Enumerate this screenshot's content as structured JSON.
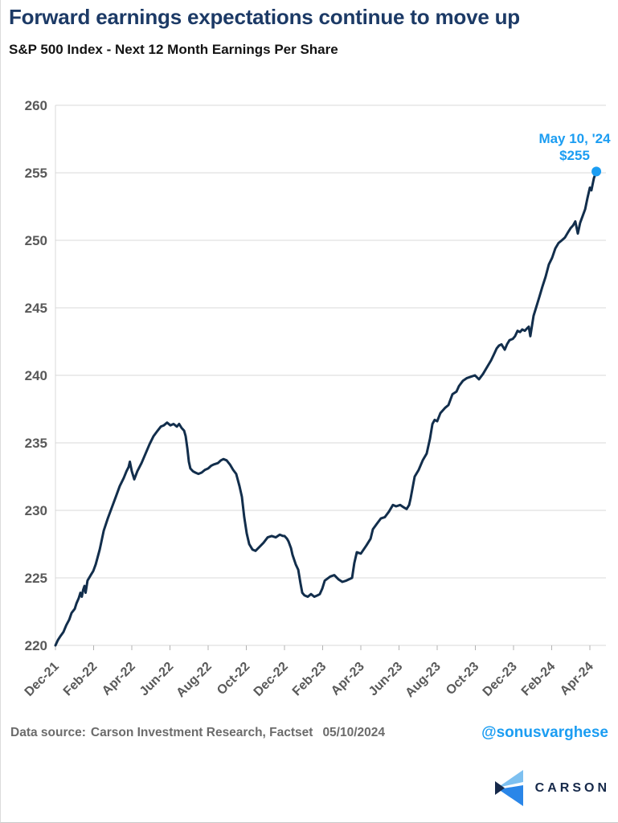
{
  "header": {
    "title": "Forward earnings expectations continue to move up",
    "subtitle": "S&P 500 Index - Next 12 Month Earnings Per Share"
  },
  "annotation": {
    "date": "May 10, '24",
    "value": "$255"
  },
  "footer": {
    "source_label": "Data source:",
    "source_text": "Carson Investment Research, Factset",
    "date": "05/10/2024",
    "handle": "@sonusvarghese"
  },
  "logo": {
    "text": "CARSON"
  },
  "colors": {
    "title": "#1c3a66",
    "line": "#122e4c",
    "accent": "#1b9df2",
    "grid": "#d9d9d9",
    "tick": "#b3b3b3",
    "axis_text": "#595959",
    "logo_light": "#7dc0f0",
    "logo_blue": "#2a86e8",
    "logo_navy": "#16294a"
  },
  "chart_data": {
    "type": "line",
    "title": "S&P 500 Index - Next 12 Month Earnings Per Share",
    "xlabel": "",
    "ylabel": "",
    "ylim": [
      220,
      260
    ],
    "y_ticks": [
      220,
      225,
      230,
      235,
      240,
      245,
      250,
      255,
      260
    ],
    "grid": "horizontal",
    "legend": "none",
    "x_labels": [
      "Dec-21",
      "Feb-22",
      "Apr-22",
      "Jun-22",
      "Aug-22",
      "Oct-22",
      "Dec-22",
      "Feb-23",
      "Apr-23",
      "Jun-23",
      "Aug-23",
      "Oct-23",
      "Dec-23",
      "Feb-24",
      "Apr-24"
    ],
    "x_tick_interval_months": 2,
    "x_unit": "months since Dec-2021",
    "endpoint": {
      "t": 28.34,
      "value": 255.1,
      "label_date": "May 10, '24",
      "label_value": "$255"
    },
    "series": [
      {
        "name": "S&P 500 NTM EPS",
        "points": [
          [
            0.0,
            220.0
          ],
          [
            0.13,
            220.4
          ],
          [
            0.27,
            220.7
          ],
          [
            0.42,
            221.0
          ],
          [
            0.57,
            221.5
          ],
          [
            0.72,
            221.9
          ],
          [
            0.84,
            222.4
          ],
          [
            1.01,
            222.7
          ],
          [
            1.1,
            223.1
          ],
          [
            1.22,
            223.5
          ],
          [
            1.31,
            223.9
          ],
          [
            1.38,
            223.6
          ],
          [
            1.45,
            224.1
          ],
          [
            1.52,
            224.4
          ],
          [
            1.58,
            223.9
          ],
          [
            1.68,
            224.8
          ],
          [
            1.85,
            225.2
          ],
          [
            1.98,
            225.5
          ],
          [
            2.11,
            226.0
          ],
          [
            2.32,
            227.1
          ],
          [
            2.53,
            228.5
          ],
          [
            2.74,
            229.4
          ],
          [
            2.95,
            230.2
          ],
          [
            3.16,
            231.0
          ],
          [
            3.37,
            231.8
          ],
          [
            3.58,
            232.4
          ],
          [
            3.72,
            232.9
          ],
          [
            3.83,
            233.2
          ],
          [
            3.9,
            233.6
          ],
          [
            4.0,
            232.9
          ],
          [
            4.13,
            232.3
          ],
          [
            4.29,
            232.9
          ],
          [
            4.51,
            233.5
          ],
          [
            4.72,
            234.2
          ],
          [
            4.93,
            234.9
          ],
          [
            5.14,
            235.5
          ],
          [
            5.35,
            235.9
          ],
          [
            5.52,
            236.2
          ],
          [
            5.68,
            236.3
          ],
          [
            5.85,
            236.5
          ],
          [
            6.02,
            236.3
          ],
          [
            6.19,
            236.4
          ],
          [
            6.36,
            236.2
          ],
          [
            6.48,
            236.4
          ],
          [
            6.61,
            236.1
          ],
          [
            6.74,
            235.9
          ],
          [
            6.82,
            235.5
          ],
          [
            6.91,
            234.6
          ],
          [
            6.99,
            233.6
          ],
          [
            7.07,
            233.1
          ],
          [
            7.2,
            232.9
          ],
          [
            7.33,
            232.8
          ],
          [
            7.49,
            232.7
          ],
          [
            7.66,
            232.8
          ],
          [
            7.83,
            233.0
          ],
          [
            8.0,
            233.1
          ],
          [
            8.15,
            233.3
          ],
          [
            8.29,
            233.4
          ],
          [
            8.51,
            233.5
          ],
          [
            8.67,
            233.7
          ],
          [
            8.8,
            233.8
          ],
          [
            8.97,
            233.7
          ],
          [
            9.14,
            233.4
          ],
          [
            9.31,
            233.0
          ],
          [
            9.47,
            232.7
          ],
          [
            9.64,
            231.8
          ],
          [
            9.77,
            231.0
          ],
          [
            9.89,
            229.5
          ],
          [
            10.02,
            228.3
          ],
          [
            10.15,
            227.5
          ],
          [
            10.32,
            227.1
          ],
          [
            10.48,
            227.0
          ],
          [
            10.69,
            227.3
          ],
          [
            10.9,
            227.6
          ],
          [
            11.12,
            228.0
          ],
          [
            11.33,
            228.1
          ],
          [
            11.54,
            228.0
          ],
          [
            11.75,
            228.2
          ],
          [
            11.92,
            228.1
          ],
          [
            12.0,
            228.1
          ],
          [
            12.13,
            227.9
          ],
          [
            12.21,
            227.7
          ],
          [
            12.34,
            227.2
          ],
          [
            12.42,
            226.7
          ],
          [
            12.59,
            226.0
          ],
          [
            12.72,
            225.6
          ],
          [
            12.84,
            224.6
          ],
          [
            12.93,
            223.9
          ],
          [
            13.05,
            223.7
          ],
          [
            13.22,
            223.6
          ],
          [
            13.39,
            223.8
          ],
          [
            13.56,
            223.6
          ],
          [
            13.73,
            223.7
          ],
          [
            13.85,
            223.8
          ],
          [
            13.98,
            224.2
          ],
          [
            14.11,
            224.8
          ],
          [
            14.4,
            225.1
          ],
          [
            14.61,
            225.2
          ],
          [
            14.82,
            224.9
          ],
          [
            15.03,
            224.7
          ],
          [
            15.24,
            224.8
          ],
          [
            15.54,
            225.0
          ],
          [
            15.66,
            226.1
          ],
          [
            15.79,
            226.9
          ],
          [
            16.0,
            226.8
          ],
          [
            16.29,
            227.4
          ],
          [
            16.51,
            227.9
          ],
          [
            16.63,
            228.6
          ],
          [
            16.84,
            229.0
          ],
          [
            17.05,
            229.4
          ],
          [
            17.26,
            229.5
          ],
          [
            17.47,
            229.9
          ],
          [
            17.68,
            230.4
          ],
          [
            17.85,
            230.3
          ],
          [
            18.06,
            230.4
          ],
          [
            18.27,
            230.2
          ],
          [
            18.4,
            230.1
          ],
          [
            18.53,
            230.4
          ],
          [
            18.61,
            230.9
          ],
          [
            18.74,
            231.9
          ],
          [
            18.82,
            232.5
          ],
          [
            19.03,
            233.0
          ],
          [
            19.24,
            233.7
          ],
          [
            19.45,
            234.2
          ],
          [
            19.62,
            235.3
          ],
          [
            19.75,
            236.4
          ],
          [
            19.87,
            236.7
          ],
          [
            20.0,
            236.6
          ],
          [
            20.17,
            237.2
          ],
          [
            20.42,
            237.6
          ],
          [
            20.59,
            237.8
          ],
          [
            20.8,
            238.6
          ],
          [
            21.01,
            238.8
          ],
          [
            21.14,
            239.2
          ],
          [
            21.35,
            239.6
          ],
          [
            21.56,
            239.8
          ],
          [
            21.77,
            239.9
          ],
          [
            21.98,
            240.0
          ],
          [
            22.19,
            239.7
          ],
          [
            22.4,
            240.1
          ],
          [
            22.61,
            240.6
          ],
          [
            22.82,
            241.1
          ],
          [
            22.99,
            241.6
          ],
          [
            23.12,
            242.0
          ],
          [
            23.24,
            242.2
          ],
          [
            23.37,
            242.3
          ],
          [
            23.54,
            241.9
          ],
          [
            23.66,
            242.3
          ],
          [
            23.79,
            242.6
          ],
          [
            23.96,
            242.7
          ],
          [
            24.08,
            242.9
          ],
          [
            24.21,
            243.3
          ],
          [
            24.34,
            243.2
          ],
          [
            24.46,
            243.4
          ],
          [
            24.59,
            243.3
          ],
          [
            24.72,
            243.5
          ],
          [
            24.8,
            243.6
          ],
          [
            24.88,
            242.9
          ],
          [
            25.05,
            244.4
          ],
          [
            25.18,
            245.0
          ],
          [
            25.35,
            245.8
          ],
          [
            25.52,
            246.6
          ],
          [
            25.68,
            247.3
          ],
          [
            25.85,
            248.2
          ],
          [
            26.02,
            248.7
          ],
          [
            26.19,
            249.4
          ],
          [
            26.36,
            249.8
          ],
          [
            26.53,
            250.0
          ],
          [
            26.69,
            250.2
          ],
          [
            26.86,
            250.6
          ],
          [
            26.99,
            250.9
          ],
          [
            27.12,
            251.1
          ],
          [
            27.24,
            251.4
          ],
          [
            27.37,
            250.5
          ],
          [
            27.49,
            251.3
          ],
          [
            27.62,
            251.8
          ],
          [
            27.75,
            252.3
          ],
          [
            27.87,
            253.1
          ],
          [
            28.0,
            253.9
          ],
          [
            28.08,
            253.7
          ],
          [
            28.21,
            254.6
          ],
          [
            28.34,
            255.1
          ]
        ]
      }
    ]
  }
}
